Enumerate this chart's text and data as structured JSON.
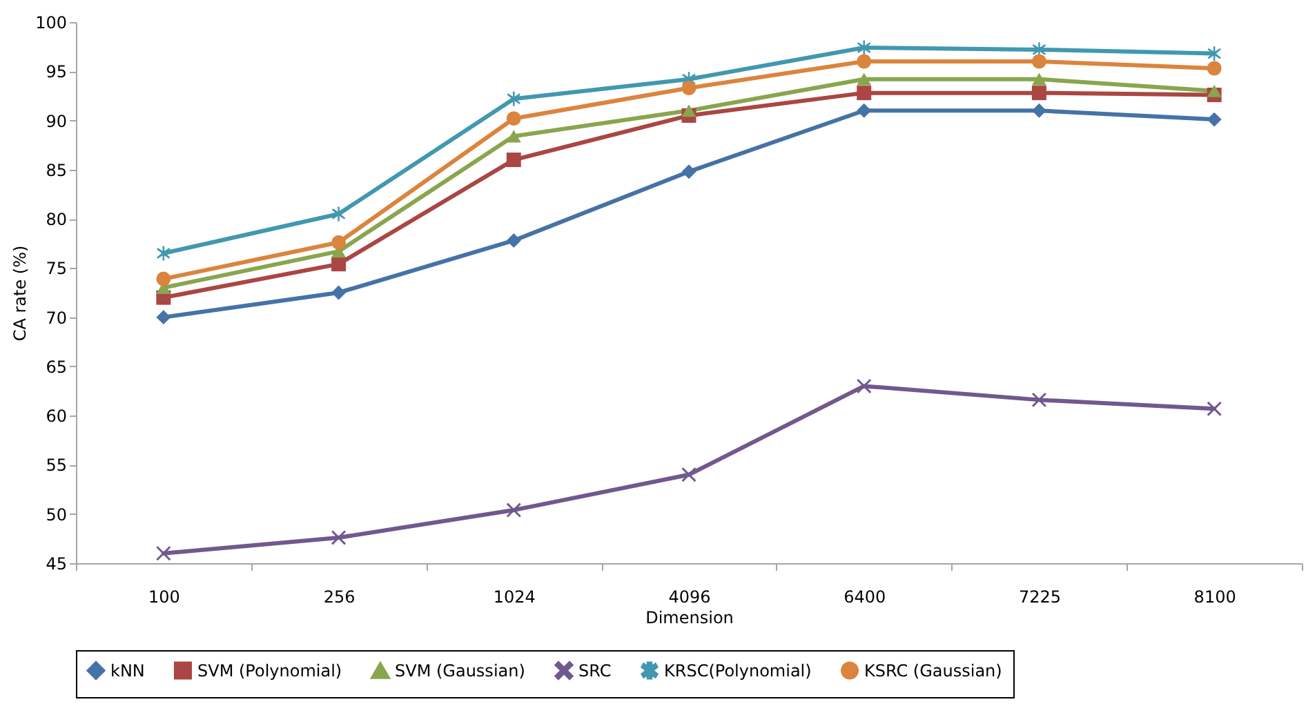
{
  "chart_data": {
    "type": "line",
    "xlabel": "Dimension",
    "ylabel": "CA rate (%)",
    "categories": [
      "100",
      "256",
      "1024",
      "4096",
      "6400",
      "7225",
      "8100"
    ],
    "ylim": [
      45,
      100
    ],
    "yticks": [
      45,
      50,
      55,
      60,
      65,
      70,
      75,
      80,
      85,
      90,
      95,
      100
    ],
    "grid": false,
    "legend": "bottom",
    "line_style": "solid",
    "series": [
      {
        "name": "kNN",
        "color": "#4572a7",
        "marker": "diamond",
        "values": [
          70,
          72.5,
          77.8,
          84.8,
          91,
          91,
          90.1
        ]
      },
      {
        "name": "SVM (Polynomial)",
        "color": "#aa4643",
        "marker": "square",
        "values": [
          72,
          75.4,
          86,
          90.5,
          92.8,
          92.8,
          92.6
        ]
      },
      {
        "name": "SVM (Gaussian)",
        "color": "#89a54e",
        "marker": "triangle",
        "values": [
          73,
          76.7,
          88.4,
          91,
          94.2,
          94.2,
          93
        ]
      },
      {
        "name": "SRC",
        "color": "#71588f",
        "marker": "cross",
        "values": [
          46,
          47.6,
          50.4,
          54,
          63,
          61.6,
          60.7
        ]
      },
      {
        "name": "KRSC(Polynomial)",
        "color": "#4198af",
        "marker": "star",
        "values": [
          76.5,
          80.5,
          92.2,
          94.2,
          97.4,
          97.2,
          96.8
        ]
      },
      {
        "name": "KSRC (Gaussian)",
        "color": "#db843d",
        "marker": "circle",
        "values": [
          73.9,
          77.6,
          90.2,
          93.3,
          96,
          96,
          95.3
        ]
      }
    ]
  }
}
